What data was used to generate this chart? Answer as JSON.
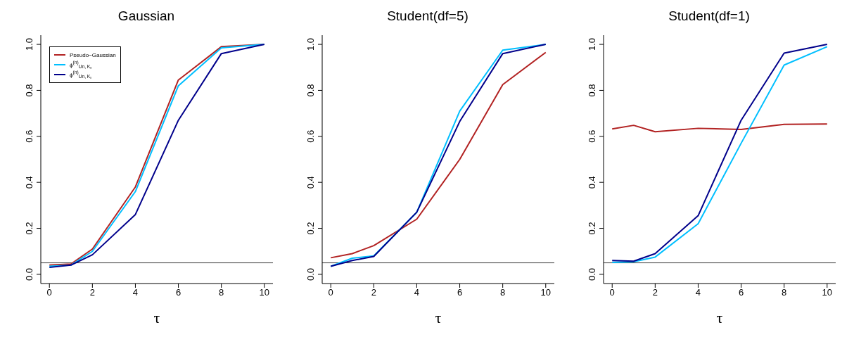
{
  "chart_data": [
    {
      "type": "line",
      "title": "Gaussian",
      "xlabel": "τ",
      "x": [
        0,
        1,
        2,
        4,
        6,
        8,
        10
      ],
      "xlim": [
        -0.4,
        10.4
      ],
      "xticks": [
        0,
        2,
        4,
        6,
        8,
        10
      ],
      "ylim": [
        -0.04,
        1.04
      ],
      "yticks": [
        {
          "value": 0,
          "label": "0.0"
        },
        {
          "value": 0.2,
          "label": "0.2"
        },
        {
          "value": 0.4,
          "label": "0.4"
        },
        {
          "value": 0.6,
          "label": "0.6"
        },
        {
          "value": 0.8,
          "label": "0.8"
        },
        {
          "value": 1,
          "label": "1.0"
        }
      ],
      "legend": "top left",
      "ref_lines": [
        {
          "axis": "y",
          "value": 0.05,
          "color": "#404040"
        }
      ],
      "series": [
        {
          "name": "Pseudo−Gaussian",
          "color": "#b22222",
          "values": [
            0.04,
            0.045,
            0.11,
            0.38,
            0.845,
            0.99,
            1.0
          ]
        },
        {
          "name": "ϕ$^{(n)}$$_{Un, Kₙ}$",
          "color": "#00bfff",
          "values": [
            0.035,
            0.04,
            0.1,
            0.36,
            0.82,
            0.985,
            1.0
          ]
        },
        {
          "name": "ϕ$^{(n)}$$_{Un, Kₛ}$",
          "color": "#00008b",
          "values": [
            0.03,
            0.04,
            0.085,
            0.26,
            0.67,
            0.96,
            1.0
          ]
        }
      ]
    },
    {
      "type": "line",
      "title": "Student(df=5)",
      "xlabel": "τ",
      "x": [
        0,
        1,
        2,
        4,
        6,
        8,
        10
      ],
      "xlim": [
        -0.4,
        10.4
      ],
      "xticks": [
        0,
        2,
        4,
        6,
        8,
        10
      ],
      "ylim": [
        -0.04,
        1.04
      ],
      "yticks": [
        {
          "value": 0,
          "label": "0.0"
        },
        {
          "value": 0.2,
          "label": "0.2"
        },
        {
          "value": 0.4,
          "label": "0.4"
        },
        {
          "value": 0.6,
          "label": "0.6"
        },
        {
          "value": 0.8,
          "label": "0.8"
        },
        {
          "value": 1,
          "label": "1.0"
        }
      ],
      "ref_lines": [
        {
          "axis": "y",
          "value": 0.05,
          "color": "#404040"
        }
      ],
      "series": [
        {
          "color": "#b22222",
          "values": [
            0.072,
            0.09,
            0.125,
            0.24,
            0.5,
            0.825,
            0.965
          ]
        },
        {
          "color": "#00bfff",
          "values": [
            0.035,
            0.07,
            0.08,
            0.27,
            0.71,
            0.975,
            1.0
          ]
        },
        {
          "color": "#00008b",
          "values": [
            0.035,
            0.06,
            0.078,
            0.27,
            0.665,
            0.96,
            1.0
          ]
        }
      ]
    },
    {
      "type": "line",
      "title": "Student(df=1)",
      "xlabel": "τ",
      "x": [
        0,
        1,
        2,
        4,
        6,
        8,
        10
      ],
      "xlim": [
        -0.4,
        10.4
      ],
      "xticks": [
        0,
        2,
        4,
        6,
        8,
        10
      ],
      "ylim": [
        -0.04,
        1.04
      ],
      "yticks": [
        {
          "value": 0,
          "label": "0.0"
        },
        {
          "value": 0.2,
          "label": "0.2"
        },
        {
          "value": 0.4,
          "label": "0.4"
        },
        {
          "value": 0.6,
          "label": "0.6"
        },
        {
          "value": 0.8,
          "label": "0.8"
        },
        {
          "value": 1,
          "label": "1.0"
        }
      ],
      "ref_lines": [
        {
          "axis": "y",
          "value": 0.05,
          "color": "#404040"
        }
      ],
      "series": [
        {
          "color": "#b22222",
          "values": [
            0.632,
            0.648,
            0.62,
            0.635,
            0.63,
            0.652,
            0.654
          ]
        },
        {
          "color": "#00bfff",
          "values": [
            0.052,
            0.055,
            0.075,
            0.22,
            0.57,
            0.91,
            0.99
          ]
        },
        {
          "color": "#00008b",
          "values": [
            0.06,
            0.057,
            0.09,
            0.255,
            0.67,
            0.962,
            1.0
          ]
        }
      ]
    }
  ]
}
